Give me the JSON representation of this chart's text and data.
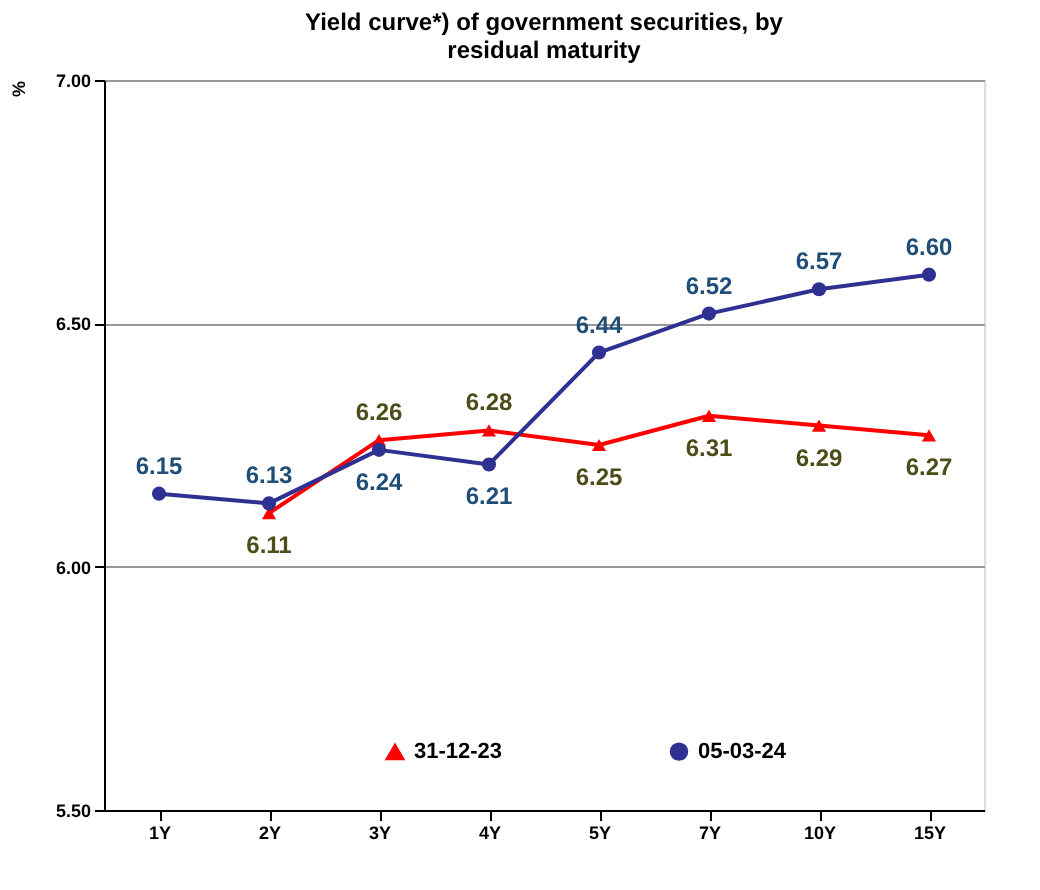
{
  "chart_data": {
    "type": "line",
    "title": [
      "Yield curve*) of government securities, by",
      "residual maturity"
    ],
    "ylabel": "%",
    "categories": [
      "1Y",
      "2Y",
      "3Y",
      "4Y",
      "5Y",
      "7Y",
      "10Y",
      "15Y"
    ],
    "series": [
      {
        "name": "31-12-23",
        "color": "#ff0000",
        "marker": "triangle",
        "values": [
          null,
          6.11,
          6.26,
          6.28,
          6.25,
          6.31,
          6.29,
          6.27
        ],
        "value_labels": [
          null,
          "6.11",
          "6.26",
          "6.28",
          "6.25",
          "6.31",
          "6.29",
          "6.27"
        ]
      },
      {
        "name": "05-03-24",
        "color": "#2e3192",
        "marker": "circle",
        "values": [
          6.15,
          6.13,
          6.24,
          6.21,
          6.44,
          6.52,
          6.57,
          6.6
        ],
        "value_labels": [
          "6.15",
          "6.13",
          "6.24",
          "6.21",
          "6.44",
          "6.52",
          "6.57",
          "6.60"
        ]
      }
    ],
    "ylim": [
      5.5,
      7.0
    ],
    "yticks": [
      {
        "value": 5.5,
        "label": "5.50"
      },
      {
        "value": 6.0,
        "label": "6.00"
      },
      {
        "value": 6.5,
        "label": "6.50"
      },
      {
        "value": 7.0,
        "label": "7.00"
      }
    ],
    "grid": "y",
    "legend": "bottom",
    "line_style": "solid"
  }
}
